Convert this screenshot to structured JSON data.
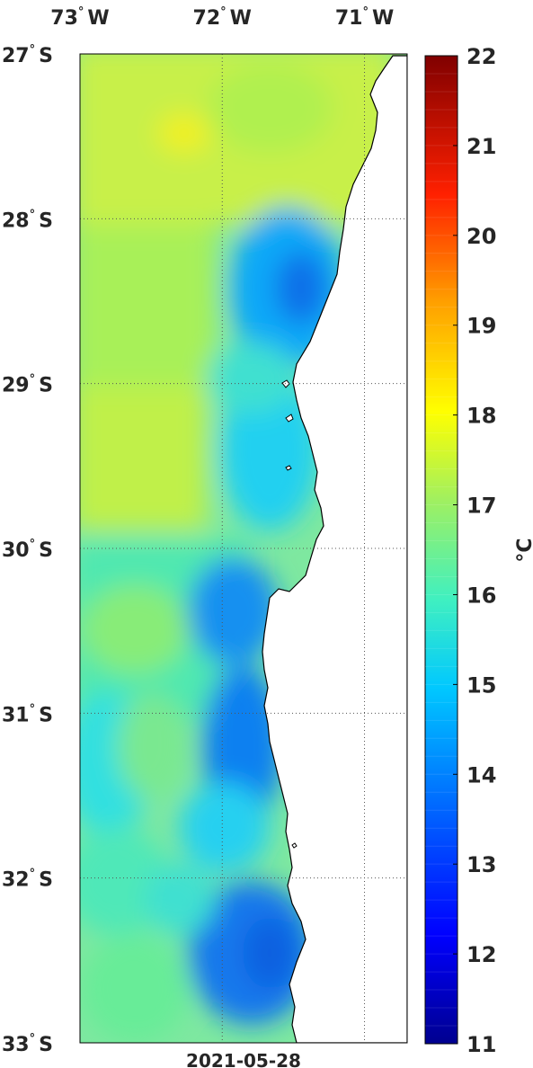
{
  "map": {
    "date_label": "2021-05-28",
    "longitude_ticks": [
      {
        "value": -73,
        "deg": "73",
        "hemi": "W"
      },
      {
        "value": -72,
        "deg": "72",
        "hemi": "W"
      },
      {
        "value": -71,
        "deg": "71",
        "hemi": "W"
      }
    ],
    "latitude_ticks": [
      {
        "value": -27,
        "deg": "27",
        "hemi": "S"
      },
      {
        "value": -28,
        "deg": "28",
        "hemi": "S"
      },
      {
        "value": -29,
        "deg": "29",
        "hemi": "S"
      },
      {
        "value": -30,
        "deg": "30",
        "hemi": "S"
      },
      {
        "value": -31,
        "deg": "31",
        "hemi": "S"
      },
      {
        "value": -32,
        "deg": "32",
        "hemi": "S"
      },
      {
        "value": -33,
        "deg": "33",
        "hemi": "S"
      }
    ],
    "extent": {
      "lon_min": -73.0,
      "lon_max": -70.7,
      "lat_min": -33.0,
      "lat_max": -27.0
    },
    "land_color": "#ffffff",
    "coastline_color": "#000000",
    "grid": "dotted"
  },
  "colorbar": {
    "unit_label": "°C",
    "min": 11,
    "max": 22,
    "ticks": [
      "11",
      "12",
      "13",
      "14",
      "15",
      "16",
      "17",
      "18",
      "19",
      "20",
      "21",
      "22"
    ],
    "colormap": "jet"
  }
}
